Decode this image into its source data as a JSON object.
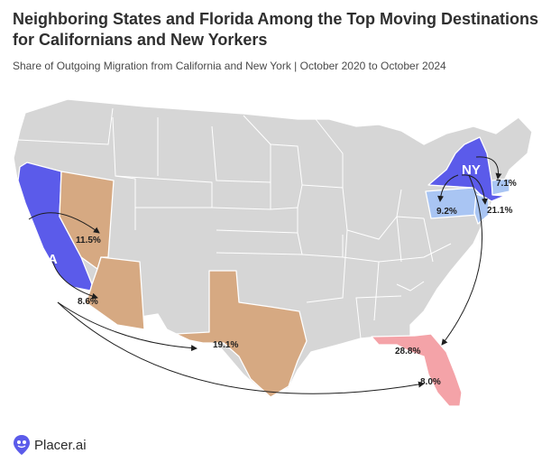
{
  "title": "Neighboring States and Florida Among the Top Moving Destinations for Californians and New Yorkers",
  "subtitle": "Share of Outgoing Migration from California and New York | October 2020 to October 2024",
  "brand": "Placer.ai",
  "colors": {
    "origin": "#5b5bea",
    "west_destination": "#d6a982",
    "northeast_destination": "#a9c5f3",
    "florida": "#f4a3a8",
    "other_states": "#d6d6d6"
  },
  "map": {
    "origins": [
      {
        "id": "california",
        "abbr": "CA"
      },
      {
        "id": "new_york",
        "abbr": "NY"
      }
    ],
    "flows": [
      {
        "from": "CA",
        "to": "Nevada",
        "share_label": "11.5%"
      },
      {
        "from": "CA",
        "to": "Arizona",
        "share_label": "8.6%"
      },
      {
        "from": "CA",
        "to": "Texas",
        "share_label": "19.1%"
      },
      {
        "from": "CA",
        "to": "Florida",
        "share_label": "8.0%"
      },
      {
        "from": "NY",
        "to": "Connecticut",
        "share_label": "7.1%"
      },
      {
        "from": "NY",
        "to": "Pennsylvania",
        "share_label": "9.2%"
      },
      {
        "from": "NY",
        "to": "New Jersey",
        "share_label": "21.1%"
      },
      {
        "from": "NY",
        "to": "Florida",
        "share_label": "28.8%"
      }
    ]
  }
}
